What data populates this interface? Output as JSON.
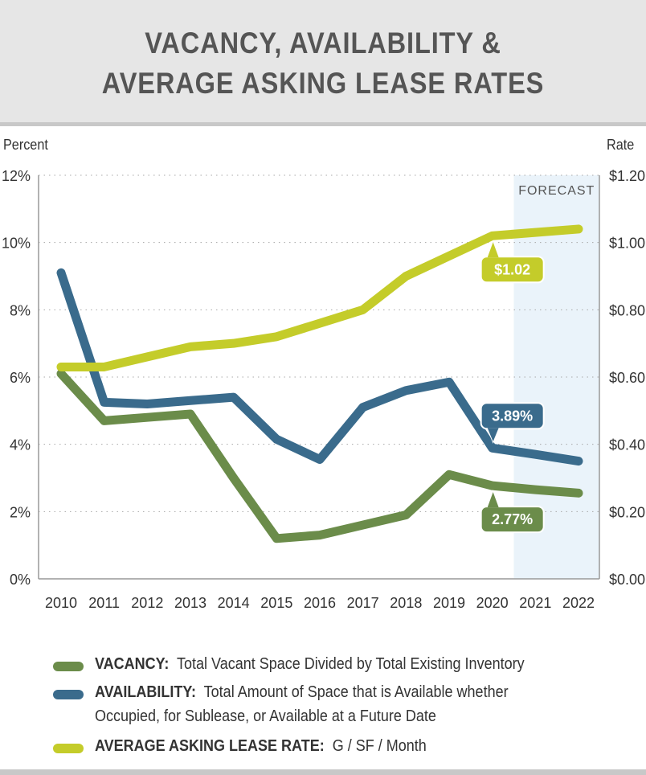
{
  "header": {
    "title_line1": "VACANCY, AVAILABILITY &",
    "title_line2": "AVERAGE ASKING LEASE RATES"
  },
  "chart_data": {
    "type": "line",
    "title": "VACANCY, AVAILABILITY & AVERAGE ASKING LEASE RATES",
    "ylabel": "Percent",
    "y2label": "Rate",
    "ylim": [
      0,
      12
    ],
    "y2lim": [
      0,
      1.2
    ],
    "yticks": [
      "0%",
      "2%",
      "4%",
      "6%",
      "8%",
      "10%",
      "12%"
    ],
    "y2ticks": [
      "$0.00",
      "$0.20",
      "$0.40",
      "$0.60",
      "$0.80",
      "$1.00",
      "$1.20"
    ],
    "grid": true,
    "x": [
      "2010",
      "2011",
      "2012",
      "2013",
      "2014",
      "2015",
      "2016",
      "2017",
      "2018",
      "2019",
      "2020",
      "2021",
      "2022"
    ],
    "forecast": {
      "label": "FORECAST",
      "from": "2021",
      "to": "2022"
    },
    "series": [
      {
        "name": "VACANCY",
        "axis": "left",
        "color": "#6b8c4a",
        "values": [
          6.1,
          4.7,
          4.8,
          4.9,
          3.0,
          1.2,
          1.3,
          1.6,
          1.9,
          3.1,
          2.77,
          2.65,
          2.55
        ]
      },
      {
        "name": "AVAILABILITY",
        "axis": "left",
        "color": "#3a6b8c",
        "values": [
          9.1,
          5.25,
          5.2,
          5.3,
          5.4,
          4.15,
          3.55,
          5.1,
          5.6,
          5.85,
          3.89,
          3.7,
          3.5
        ]
      },
      {
        "name": "AVERAGE ASKING LEASE RATE",
        "axis": "right",
        "color": "#c4cc2a",
        "values": [
          0.63,
          0.63,
          0.66,
          0.69,
          0.7,
          0.72,
          0.76,
          0.8,
          0.9,
          0.96,
          1.02,
          1.03,
          1.04
        ]
      }
    ],
    "annotations": [
      {
        "series": "AVERAGE ASKING LEASE RATE",
        "x": "2020",
        "text": "$1.02"
      },
      {
        "series": "AVAILABILITY",
        "x": "2020",
        "text": "3.89%"
      },
      {
        "series": "VACANCY",
        "x": "2020",
        "text": "2.77%"
      }
    ]
  },
  "legend": [
    {
      "key": "vacancy",
      "color": "#6b8c4a",
      "term": "VACANCY:",
      "desc1": "Total Vacant Space Divided by Total Existing Inventory",
      "desc2": ""
    },
    {
      "key": "availability",
      "color": "#3a6b8c",
      "term": "AVAILABILITY:",
      "desc1": "Total Amount of Space that is Available whether",
      "desc2": "Occupied, for Sublease, or Available at a Future Date"
    },
    {
      "key": "rate",
      "color": "#c4cc2a",
      "term": "AVERAGE ASKING LEASE RATE:",
      "desc1": "G / SF / Month",
      "desc2": ""
    }
  ]
}
